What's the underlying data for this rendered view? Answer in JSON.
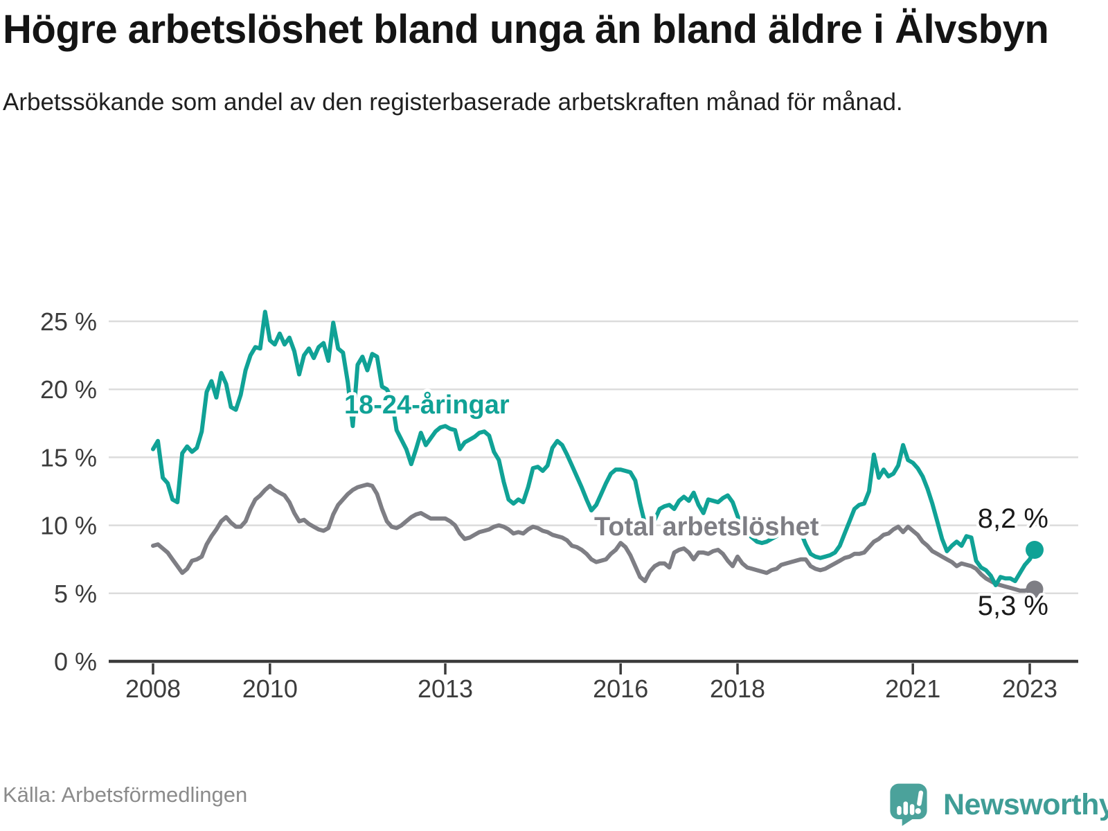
{
  "header": {
    "title": "Högre arbetslöshet bland unga än bland äldre i Älvsbyn",
    "subtitle": "Arbetssökande som andel av den registerbaserade arbetskraften månad för månad."
  },
  "footer": {
    "source": "Källa: Arbetsförmedlingen",
    "brand": "Newsworthy",
    "brand_color": "#3F9D96",
    "brand_icon": "newsworthy-logo-icon",
    "brand_icon_color": "#4BA29B"
  },
  "chart_data": {
    "type": "line",
    "title": "Högre arbetslöshet bland unga än bland äldre i Älvsbyn",
    "xlabel": "",
    "ylabel": "",
    "unit": "%",
    "frequency": "monthly",
    "start": "2008-01",
    "end": "2023-02",
    "grid": "horizontal",
    "legend_position": "inline-labels",
    "x_ticks": [
      2008,
      2010,
      2013,
      2016,
      2018,
      2021,
      2023
    ],
    "y_ticks": [
      0,
      5,
      10,
      15,
      20,
      25
    ],
    "y_tick_suffix": " %",
    "ylim": [
      0,
      26
    ],
    "style": {
      "axis_color": "#3B3B3B",
      "grid_color": "#DCDCDC",
      "tick_label_color": "#3C3C3C",
      "value_label_color": "#1A1A1A",
      "halo_color": "#FFFFFF"
    },
    "series": [
      {
        "name": "18-24-åringar",
        "color": "#10A296",
        "end_label": "8,2 %",
        "last_value": 8.2,
        "values": [
          15.6,
          16.2,
          13.5,
          13.1,
          11.9,
          11.7,
          15.3,
          15.8,
          15.4,
          15.7,
          16.9,
          19.8,
          20.6,
          19.4,
          21.2,
          20.4,
          18.7,
          18.5,
          19.6,
          21.4,
          22.5,
          23.1,
          23.0,
          25.7,
          23.6,
          23.3,
          24.1,
          23.3,
          23.8,
          22.8,
          21.1,
          22.5,
          23.0,
          22.3,
          23.1,
          23.4,
          22.1,
          24.9,
          23.0,
          22.7,
          20.5,
          17.3,
          21.8,
          22.4,
          21.4,
          22.6,
          22.4,
          20.2,
          20.0,
          19.3,
          17.0,
          16.3,
          15.6,
          14.5,
          15.6,
          16.8,
          15.9,
          16.4,
          16.9,
          17.2,
          17.3,
          17.1,
          17.0,
          15.6,
          16.1,
          16.3,
          16.5,
          16.8,
          16.9,
          16.6,
          15.4,
          14.8,
          13.2,
          11.9,
          11.6,
          11.9,
          11.7,
          12.8,
          14.2,
          14.3,
          14.0,
          14.4,
          15.7,
          16.2,
          15.9,
          15.2,
          14.4,
          13.6,
          12.8,
          11.9,
          11.1,
          11.5,
          12.3,
          13.1,
          13.8,
          14.1,
          14.1,
          14.0,
          13.9,
          13.3,
          11.6,
          10.1,
          10.3,
          10.4,
          11.2,
          11.4,
          11.5,
          11.2,
          11.8,
          12.1,
          11.8,
          12.4,
          11.5,
          10.9,
          11.9,
          11.8,
          11.7,
          12.0,
          12.2,
          11.7,
          10.7,
          9.9,
          9.4,
          9.1,
          8.8,
          8.7,
          8.8,
          9.0,
          9.2,
          9.5,
          9.7,
          9.9,
          10.0,
          9.5,
          8.6,
          7.9,
          7.7,
          7.6,
          7.7,
          7.8,
          8.0,
          8.5,
          9.4,
          10.3,
          11.2,
          11.5,
          11.6,
          12.5,
          15.2,
          13.5,
          14.1,
          13.6,
          13.8,
          14.4,
          15.9,
          14.8,
          14.6,
          14.2,
          13.6,
          12.7,
          11.6,
          10.3,
          9.0,
          8.1,
          8.5,
          8.8,
          8.5,
          9.2,
          9.1,
          7.4,
          6.9,
          6.7,
          6.3,
          5.6,
          6.2,
          6.1,
          6.1,
          5.9,
          6.5,
          7.1,
          7.5,
          8.2
        ]
      },
      {
        "name": "Total arbetslöshet",
        "color": "#7E7E84",
        "end_label": "5,3 %",
        "last_value": 5.3,
        "values": [
          8.5,
          8.6,
          8.3,
          8.0,
          7.5,
          7.0,
          6.5,
          6.8,
          7.4,
          7.5,
          7.7,
          8.6,
          9.2,
          9.7,
          10.3,
          10.6,
          10.2,
          9.9,
          9.9,
          10.3,
          11.2,
          11.9,
          12.2,
          12.6,
          12.9,
          12.6,
          12.4,
          12.2,
          11.7,
          10.9,
          10.3,
          10.4,
          10.1,
          9.9,
          9.7,
          9.6,
          9.8,
          10.8,
          11.5,
          11.9,
          12.3,
          12.6,
          12.8,
          12.9,
          13.0,
          12.9,
          12.3,
          11.2,
          10.3,
          9.9,
          9.8,
          10.0,
          10.3,
          10.6,
          10.8,
          10.9,
          10.7,
          10.5,
          10.5,
          10.5,
          10.5,
          10.3,
          10.0,
          9.4,
          9.0,
          9.1,
          9.3,
          9.5,
          9.6,
          9.7,
          9.9,
          10.0,
          9.9,
          9.7,
          9.4,
          9.5,
          9.4,
          9.7,
          9.9,
          9.8,
          9.6,
          9.5,
          9.3,
          9.2,
          9.1,
          8.9,
          8.5,
          8.4,
          8.2,
          7.9,
          7.5,
          7.3,
          7.4,
          7.5,
          7.9,
          8.2,
          8.7,
          8.4,
          7.8,
          7.0,
          6.2,
          5.9,
          6.6,
          7.0,
          7.2,
          7.2,
          6.9,
          8.0,
          8.2,
          8.3,
          8.0,
          7.5,
          8.0,
          8.0,
          7.9,
          8.1,
          8.2,
          7.9,
          7.4,
          7.0,
          7.7,
          7.2,
          6.9,
          6.8,
          6.7,
          6.6,
          6.5,
          6.7,
          6.8,
          7.1,
          7.2,
          7.3,
          7.4,
          7.5,
          7.5,
          7.0,
          6.8,
          6.7,
          6.8,
          7.0,
          7.2,
          7.4,
          7.6,
          7.7,
          7.9,
          7.9,
          8.0,
          8.4,
          8.8,
          9.0,
          9.3,
          9.4,
          9.7,
          9.9,
          9.5,
          9.9,
          9.6,
          9.3,
          8.8,
          8.5,
          8.1,
          7.9,
          7.7,
          7.5,
          7.3,
          7.0,
          7.2,
          7.1,
          7.0,
          6.8,
          6.4,
          6.1,
          5.9,
          5.7,
          5.6,
          5.5,
          5.4,
          5.3,
          5.2,
          5.2,
          5.3,
          5.3
        ]
      }
    ]
  }
}
